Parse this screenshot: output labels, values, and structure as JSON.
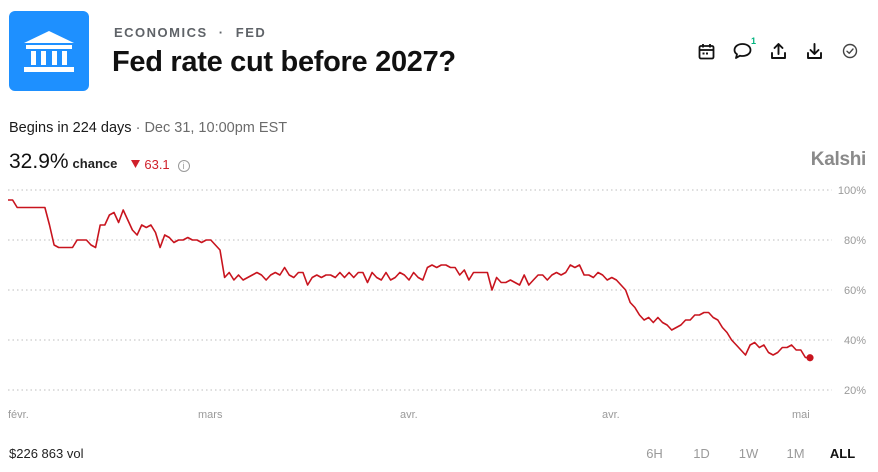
{
  "header": {
    "category": "ECONOMICS",
    "category_sep": "·",
    "subcategory": "FED",
    "title": "Fed rate cut before 2027?",
    "logo_icon": "bank-building-icon",
    "logo_color": "#1e90ff"
  },
  "toolbar": {
    "items": [
      {
        "name": "calendar-icon"
      },
      {
        "name": "comment-icon",
        "count": "1"
      },
      {
        "name": "share-icon"
      },
      {
        "name": "download-icon"
      },
      {
        "name": "check-circle-icon"
      }
    ]
  },
  "market": {
    "begins_label": "Begins in 224 days",
    "sep": "·",
    "begins_date": "Dec 31, 10:00pm EST",
    "chance_value": "32.9%",
    "chance_label": "chance",
    "delta_value": "63.1",
    "delta_color": "#d0202a",
    "brand": "Kalshi"
  },
  "chart_data": {
    "type": "line",
    "series": [
      {
        "color": "#c8141e",
        "values": [
          96,
          96,
          93,
          93,
          93,
          93,
          93,
          93,
          93,
          86,
          78,
          77,
          77,
          77,
          77,
          80,
          80,
          80,
          78,
          77,
          86,
          86,
          90,
          91,
          87,
          92,
          88,
          84,
          82,
          86,
          85,
          86,
          83,
          77,
          82,
          81,
          79,
          80,
          80,
          81,
          80,
          80,
          79,
          80,
          80,
          78,
          76,
          65,
          67,
          64,
          66,
          64,
          65,
          66,
          67,
          66,
          64,
          66,
          67,
          66,
          69,
          66,
          65,
          67,
          67,
          62,
          65,
          66,
          65,
          66,
          66,
          65,
          67,
          65,
          67,
          65,
          67,
          67,
          63,
          67,
          65,
          64,
          67,
          64,
          65,
          67,
          66,
          64,
          67,
          65,
          64,
          69,
          70,
          69,
          70,
          70,
          69,
          69,
          66,
          68,
          64,
          67,
          67,
          67,
          67,
          60,
          65,
          63,
          63,
          64,
          63,
          62,
          66,
          62,
          64,
          66,
          66,
          64,
          66,
          67,
          66,
          67,
          70,
          69,
          70,
          66,
          66,
          65,
          67,
          66,
          64,
          65,
          64,
          62,
          60,
          55,
          53,
          50,
          48,
          49,
          47,
          49,
          47,
          46,
          44,
          45,
          46,
          48,
          48,
          50,
          50,
          51,
          51,
          49,
          48,
          45,
          43,
          40,
          38,
          36,
          34,
          38,
          39,
          37,
          38,
          35,
          34,
          35,
          37,
          37,
          38,
          36,
          36,
          33,
          32.9
        ]
      }
    ],
    "x_ticks": [
      "févr.",
      "mars",
      "avr.",
      "avr.",
      "mai"
    ],
    "y_ticks": [
      "100%",
      "80%",
      "60%",
      "40%",
      "20%"
    ],
    "ylim": [
      20,
      100
    ],
    "grid": true,
    "last_value": 32.9
  },
  "footer": {
    "volume": "$226 863 vol",
    "ranges": [
      "6H",
      "1D",
      "1W",
      "1M",
      "ALL"
    ],
    "active_range": "ALL"
  }
}
